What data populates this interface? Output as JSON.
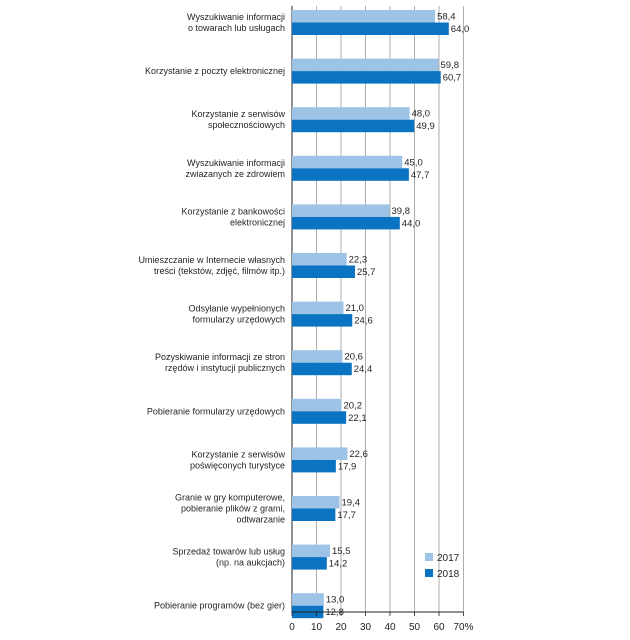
{
  "chart_data": {
    "type": "bar",
    "orientation": "horizontal",
    "categories": [
      [
        "Wyszukiwanie informacji",
        "o towarach lub usługach"
      ],
      [
        "Korzystanie z poczty elektronicznej"
      ],
      [
        "Korzystanie z serwisów",
        "społecznościowych"
      ],
      [
        "Wyszukiwanie informacji",
        "zwiazanych ze zdrowiem"
      ],
      [
        "Korzystanie z bankowości",
        "elektronicznej"
      ],
      [
        "Umieszczanie w Internecie własnych",
        "treści (tekstów, zdjęć, filmów itp.)"
      ],
      [
        "Odsyłanie wypełnionych",
        "formularzy urzędowych"
      ],
      [
        "Pozyskiwanie informacji ze stron",
        "rzędów i instytucji publicznych"
      ],
      [
        "Pobieranie formularzy urzędowych"
      ],
      [
        "Korzystanie z serwisów",
        "poświęconych turystyce"
      ],
      [
        "Granie w gry komputerowe,",
        "pobieranie plików z grami,",
        "odtwarzanie"
      ],
      [
        "Sprzedaż towarów lub usług",
        "(np. na aukcjach)"
      ],
      [
        "Pobieranie programów (bez gier)"
      ]
    ],
    "series": [
      {
        "name": "2017",
        "color": "#9dc3e6",
        "values": [
          58.4,
          59.8,
          48.0,
          45.0,
          39.8,
          22.3,
          21.0,
          20.6,
          20.2,
          22.6,
          19.4,
          15.5,
          13.0
        ],
        "labels": [
          "58,4",
          "59,8",
          "48,0",
          "45,0",
          "39,8",
          "22,3",
          "21,0",
          "20,6",
          "20,2",
          "22,6",
          "19,4",
          "15,5",
          "13,0"
        ]
      },
      {
        "name": "2018",
        "color": "#0a73c2",
        "values": [
          64.0,
          60.7,
          49.9,
          47.7,
          44.0,
          25.7,
          24.6,
          24.4,
          22.1,
          17.9,
          17.7,
          14.2,
          12.8
        ],
        "labels": [
          "64,0",
          "60,7",
          "49,9",
          "47,7",
          "44,0",
          "25,7",
          "24,6",
          "24,4",
          "22,1",
          "17,9",
          "17,7",
          "14,2",
          "12,8"
        ]
      }
    ],
    "xlim": [
      0,
      70
    ],
    "ticks": [
      0,
      10,
      20,
      30,
      40,
      50,
      60,
      70
    ],
    "tick_labels": [
      "0",
      "10",
      "20",
      "30",
      "40",
      "50",
      "60",
      "70%"
    ],
    "grid": true,
    "legend": "bottom-right"
  }
}
